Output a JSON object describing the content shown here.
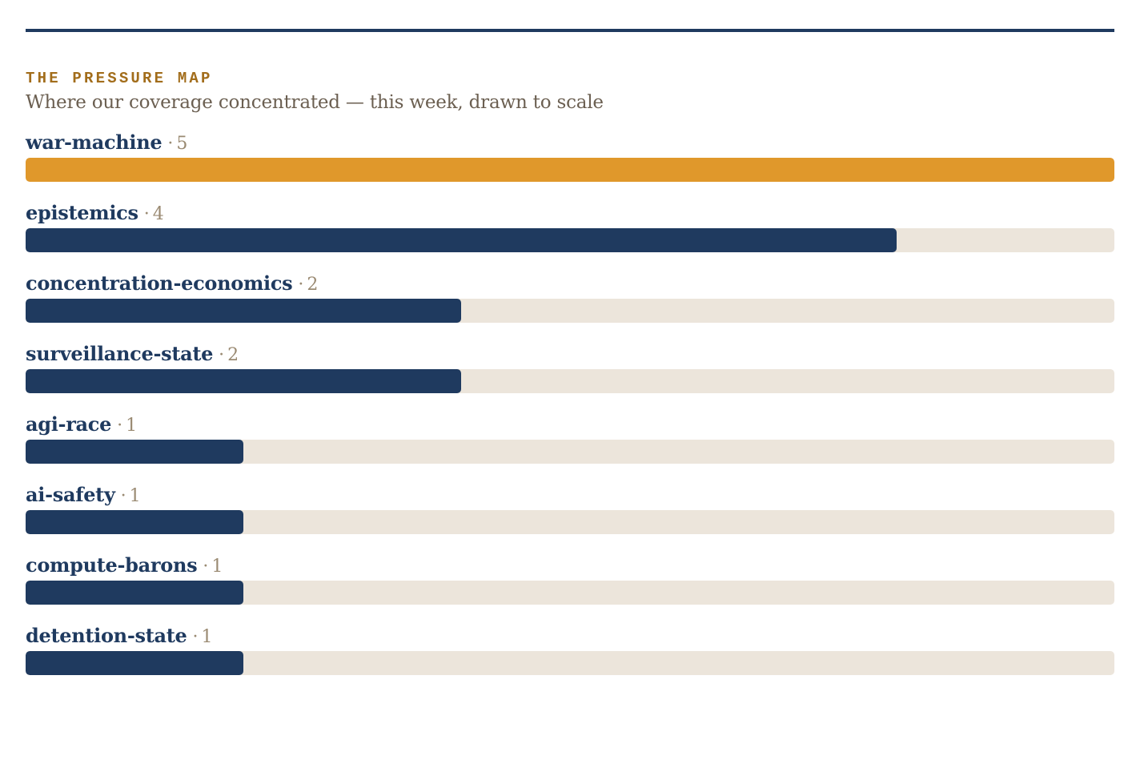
{
  "header": {
    "kicker": "THE PRESSURE MAP",
    "subtitle": "Where our coverage concentrated — this week, drawn to scale"
  },
  "colors": {
    "rule": "#1f3a5f",
    "bar": "#1f3a5f",
    "bar_top": "#e0982b",
    "track": "#ece5db",
    "kicker": "#a26d1b"
  },
  "separator": "·",
  "chart_data": {
    "type": "bar",
    "orientation": "horizontal",
    "title": "THE PRESSURE MAP",
    "subtitle": "Where our coverage concentrated — this week, drawn to scale",
    "categories": [
      "war-machine",
      "epistemics",
      "concentration-economics",
      "surveillance-state",
      "agi-race",
      "ai-safety",
      "compute-barons",
      "detention-state"
    ],
    "values": [
      5,
      4,
      2,
      2,
      1,
      1,
      1,
      1
    ],
    "xlim": [
      0,
      5
    ],
    "grid": false,
    "legend": "none"
  }
}
